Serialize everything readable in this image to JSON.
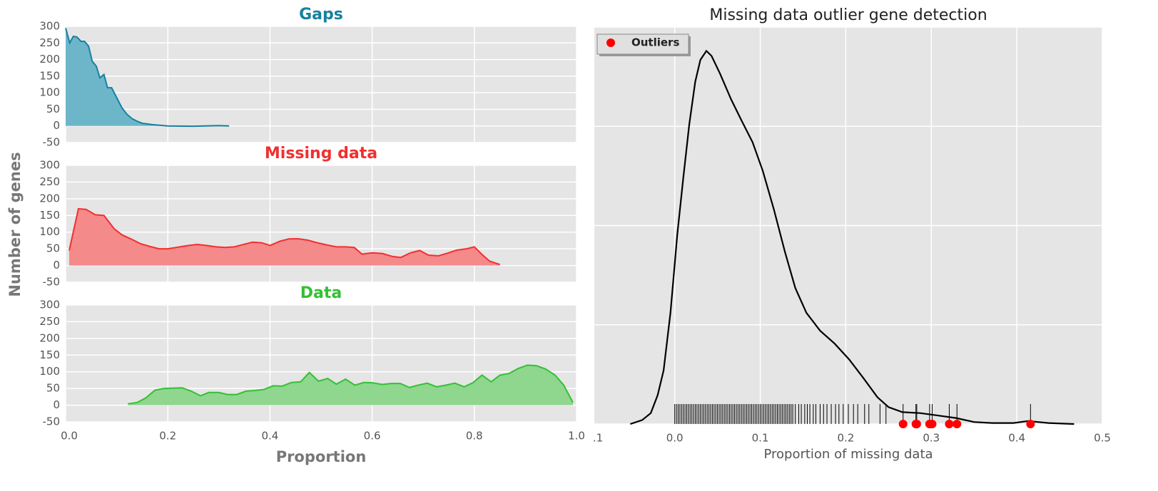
{
  "chart_data": [
    {
      "type": "area",
      "title": "Gaps",
      "title_color": "#16819f",
      "color": "#16819f",
      "fill_color": "#6db6ca",
      "x": [
        0,
        0.008,
        0.015,
        0.022,
        0.03,
        0.037,
        0.045,
        0.052,
        0.06,
        0.067,
        0.075,
        0.082,
        0.09,
        0.1,
        0.11,
        0.12,
        0.13,
        0.14,
        0.15,
        0.17,
        0.2,
        0.25,
        0.3,
        0.32
      ],
      "values": [
        295,
        250,
        270,
        268,
        255,
        255,
        240,
        195,
        180,
        145,
        155,
        115,
        115,
        85,
        55,
        35,
        22,
        14,
        8,
        4,
        0,
        -1,
        1,
        0
      ],
      "xlim": [
        0,
        1
      ],
      "ylim": [
        -50,
        300
      ],
      "yticks": [
        -50,
        0,
        50,
        100,
        150,
        200,
        250,
        300
      ],
      "xticks": [
        {
          "value": 0,
          "label": "0.0"
        },
        0.2,
        0.4,
        0.6,
        0.8,
        {
          "value": 1,
          "label": "1.0"
        }
      ],
      "show_xtick_labels": false,
      "grid": true
    },
    {
      "type": "area",
      "title": "Missing data",
      "title_color": "#f22f2f",
      "color": "#f22f2f",
      "fill_color": "#f58a8a",
      "ylabel": "Number of genes",
      "x": [
        0.007,
        0.025,
        0.04,
        0.058,
        0.075,
        0.095,
        0.11,
        0.13,
        0.147,
        0.165,
        0.183,
        0.2,
        0.22,
        0.24,
        0.258,
        0.276,
        0.294,
        0.312,
        0.33,
        0.348,
        0.366,
        0.384,
        0.4,
        0.42,
        0.438,
        0.456,
        0.474,
        0.49,
        0.51,
        0.53,
        0.547,
        0.565,
        0.58,
        0.6,
        0.62,
        0.64,
        0.656,
        0.675,
        0.693,
        0.71,
        0.73,
        0.748,
        0.765,
        0.785,
        0.8,
        0.815,
        0.83,
        0.85
      ],
      "values": [
        45,
        170,
        168,
        152,
        150,
        110,
        92,
        78,
        65,
        57,
        50,
        50,
        55,
        60,
        63,
        60,
        56,
        54,
        56,
        63,
        70,
        68,
        60,
        73,
        80,
        80,
        76,
        69,
        62,
        56,
        56,
        54,
        34,
        38,
        36,
        27,
        24,
        38,
        45,
        31,
        29,
        37,
        46,
        50,
        56,
        33,
        13,
        3
      ],
      "xlim": [
        0,
        1
      ],
      "ylim": [
        -50,
        300
      ],
      "yticks": [
        -50,
        0,
        50,
        100,
        150,
        200,
        250,
        300
      ],
      "xticks": [
        {
          "value": 0,
          "label": "0.0"
        },
        0.2,
        0.4,
        0.6,
        0.8,
        {
          "value": 1,
          "label": "1.0"
        }
      ],
      "show_xtick_labels": false,
      "grid": true
    },
    {
      "type": "area",
      "title": "Data",
      "title_color": "#33c033",
      "color": "#33c033",
      "fill_color": "#8fd68f",
      "xlabel": "Proportion",
      "x": [
        0.122,
        0.14,
        0.157,
        0.175,
        0.193,
        0.21,
        0.228,
        0.246,
        0.264,
        0.28,
        0.3,
        0.317,
        0.335,
        0.353,
        0.37,
        0.388,
        0.406,
        0.424,
        0.442,
        0.46,
        0.477,
        0.495,
        0.513,
        0.53,
        0.548,
        0.566,
        0.584,
        0.6,
        0.62,
        0.637,
        0.655,
        0.673,
        0.69,
        0.708,
        0.726,
        0.744,
        0.762,
        0.78,
        0.797,
        0.815,
        0.833,
        0.85,
        0.868,
        0.886,
        0.904,
        0.922,
        0.94,
        0.958,
        0.975,
        0.993
      ],
      "values": [
        4,
        8,
        22,
        45,
        50,
        51,
        52,
        42,
        28,
        38,
        38,
        32,
        32,
        42,
        44,
        47,
        58,
        57,
        68,
        70,
        98,
        72,
        80,
        63,
        78,
        60,
        68,
        67,
        62,
        65,
        65,
        53,
        60,
        66,
        55,
        60,
        66,
        55,
        67,
        90,
        70,
        90,
        95,
        110,
        120,
        118,
        108,
        90,
        60,
        8
      ],
      "xlim": [
        0,
        1
      ],
      "ylim": [
        -50,
        300
      ],
      "yticks": [
        -50,
        0,
        50,
        100,
        150,
        200,
        250,
        300
      ],
      "xticks": [
        {
          "value": 0,
          "label": "0.0"
        },
        0.2,
        0.4,
        0.6,
        0.8,
        {
          "value": 1,
          "label": "1.0"
        }
      ],
      "grid": true
    },
    {
      "type": "kde",
      "title": "Missing data outlier gene detection",
      "xlabel": "Proportion of missing data",
      "color": "#000000",
      "x": [
        -0.052,
        -0.038,
        -0.028,
        -0.02,
        -0.013,
        -0.005,
        0.003,
        0.01,
        0.017,
        0.024,
        0.03,
        0.037,
        0.043,
        0.053,
        0.066,
        0.078,
        0.091,
        0.103,
        0.116,
        0.129,
        0.141,
        0.154,
        0.17,
        0.187,
        0.204,
        0.22,
        0.237,
        0.25,
        0.266,
        0.287,
        0.304,
        0.329,
        0.35,
        0.371,
        0.396,
        0.413,
        0.437,
        0.467
      ],
      "values": [
        0,
        0.04,
        0.11,
        0.29,
        0.54,
        1.12,
        1.91,
        2.48,
        3.02,
        3.45,
        3.67,
        3.76,
        3.71,
        3.53,
        3.27,
        3.06,
        2.84,
        2.55,
        2.16,
        1.73,
        1.37,
        1.12,
        0.94,
        0.81,
        0.65,
        0.47,
        0.27,
        0.17,
        0.12,
        0.11,
        0.09,
        0.06,
        0.02,
        0.01,
        0.01,
        0.03,
        0.01,
        0
      ],
      "rug": [
        0,
        0.002,
        0.004,
        0.006,
        0.008,
        0.01,
        0.012,
        0.014,
        0.016,
        0.018,
        0.02,
        0.022,
        0.024,
        0.026,
        0.028,
        0.03,
        0.032,
        0.034,
        0.036,
        0.038,
        0.04,
        0.042,
        0.044,
        0.046,
        0.048,
        0.05,
        0.052,
        0.054,
        0.056,
        0.058,
        0.06,
        0.062,
        0.064,
        0.066,
        0.068,
        0.07,
        0.072,
        0.074,
        0.076,
        0.078,
        0.08,
        0.082,
        0.084,
        0.086,
        0.088,
        0.09,
        0.092,
        0.094,
        0.096,
        0.098,
        0.1,
        0.102,
        0.104,
        0.106,
        0.108,
        0.11,
        0.112,
        0.114,
        0.116,
        0.118,
        0.12,
        0.122,
        0.124,
        0.126,
        0.128,
        0.13,
        0.132,
        0.134,
        0.136,
        0.138,
        0.141,
        0.145,
        0.148,
        0.152,
        0.155,
        0.158,
        0.162,
        0.165,
        0.17,
        0.174,
        0.178,
        0.183,
        0.188,
        0.192,
        0.197,
        0.203,
        0.209,
        0.214,
        0.222,
        0.227,
        0.24,
        0.247
      ],
      "series": [
        {
          "name": "Outliers",
          "color": "#ff0000",
          "x": [
            0.267,
            0.282,
            0.283,
            0.298,
            0.301,
            0.321,
            0.33,
            0.416
          ],
          "values": [
            0,
            0,
            0,
            0,
            0,
            0,
            0,
            0
          ]
        }
      ],
      "legend": "upper left",
      "xlim": [
        -0.094,
        0.5
      ],
      "ylim": [
        0,
        4
      ],
      "yticks": [
        0,
        1,
        2,
        3,
        4
      ],
      "show_ytick_labels": false,
      "xticks": [
        {
          "value": -0.1,
          "label": ".1"
        },
        {
          "value": 0,
          "label": "0.0"
        },
        0.1,
        0.2,
        0.3,
        0.4,
        0.5
      ],
      "grid": true
    }
  ]
}
